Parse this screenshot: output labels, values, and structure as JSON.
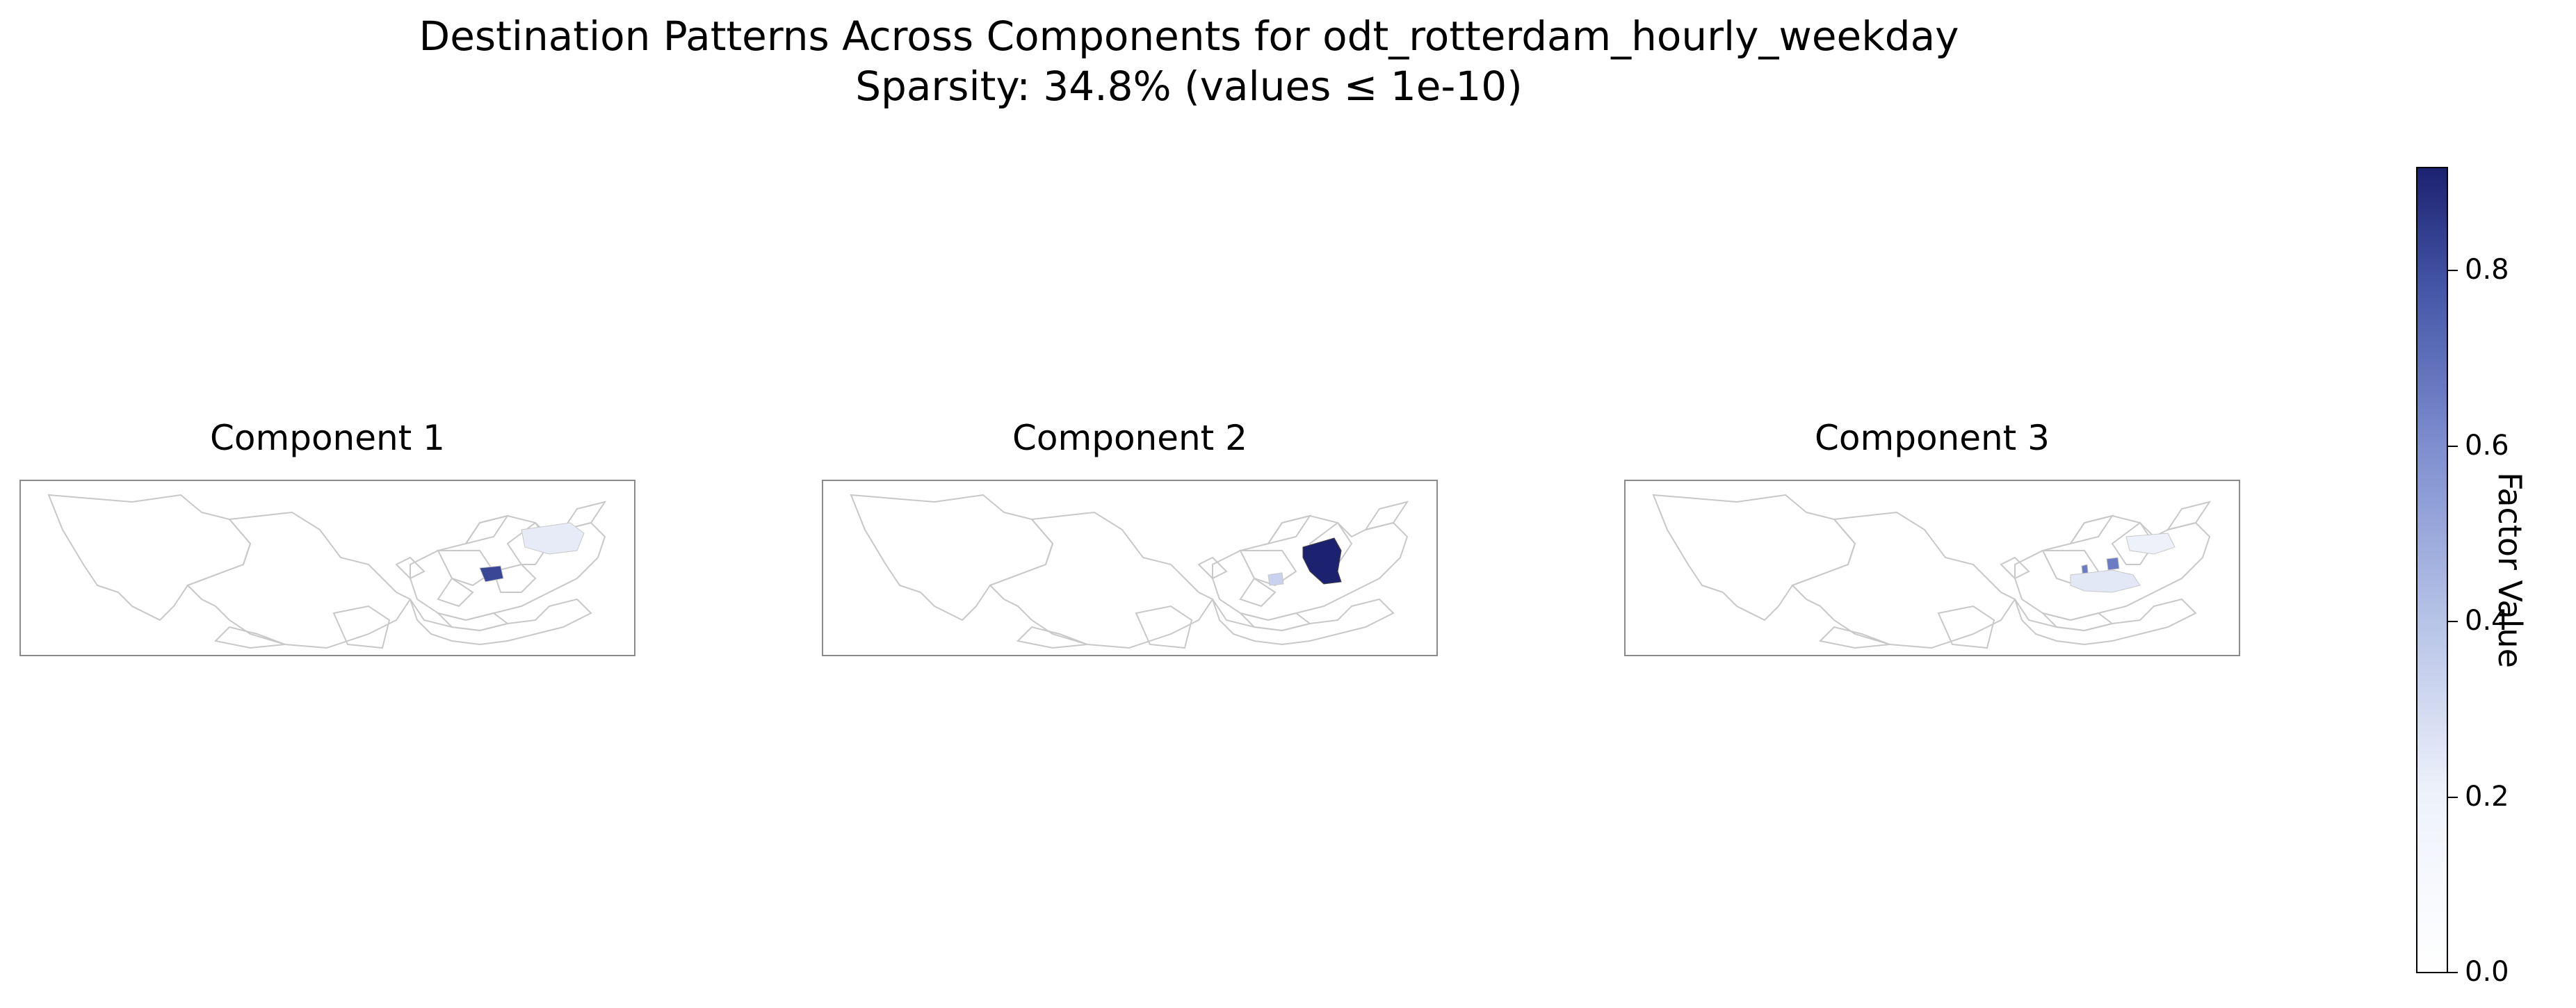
{
  "figure": {
    "title_line1": "Destination Patterns Across Components for odt_rotterdam_hourly_weekday",
    "title_line2": "Sparsity: 34.8% (values ≤ 1e-10)"
  },
  "panels": [
    {
      "title": "Component 1"
    },
    {
      "title": "Component 2"
    },
    {
      "title": "Component 3"
    }
  ],
  "colorbar": {
    "label": "Factor Value",
    "range": [
      0,
      0.92
    ],
    "ticks": [
      "0.0",
      "0.2",
      "0.4",
      "0.6",
      "0.8"
    ],
    "colors": {
      "low": "#ffffff",
      "mid": "#b3c0e6",
      "high": "#1c2270"
    }
  },
  "map_colors": {
    "boundary": "#c8c8c8",
    "fill_empty": "#ffffff",
    "c1_dark": "#3a4796",
    "c1_light": "#e6ebf7",
    "c2_dark": "#1c2270",
    "c2_light": "#c9d2ef",
    "c3_mid": "#6b7cc5",
    "c3_light": "#e3e8f6"
  }
}
